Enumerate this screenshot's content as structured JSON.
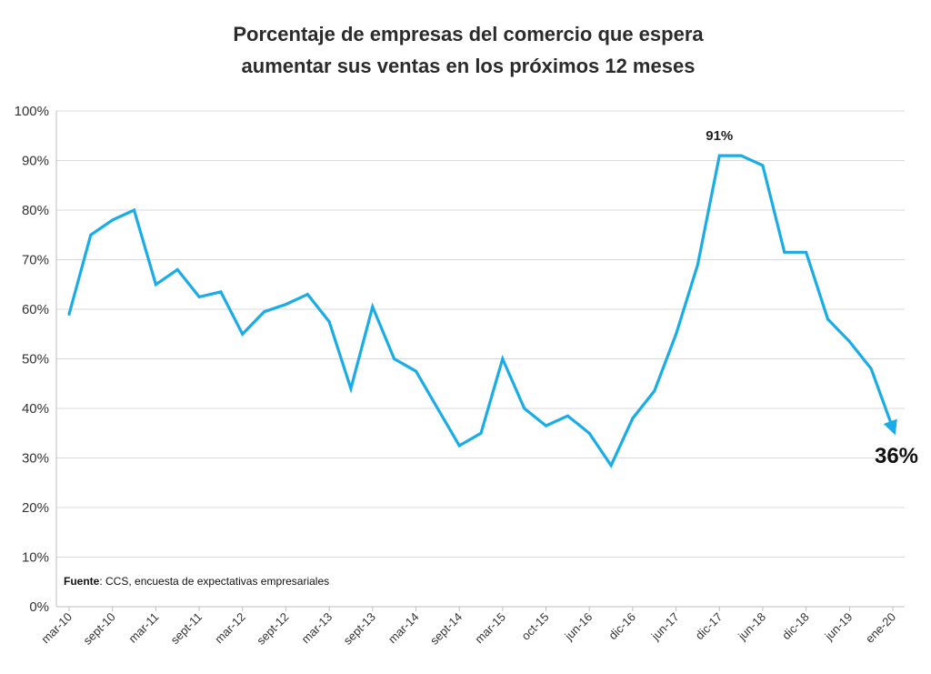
{
  "chart_data": {
    "type": "line",
    "title_lines": [
      "Porcentaje de empresas del comercio que espera",
      "aumentar sus ventas en los próximos 12 meses"
    ],
    "yticks": [
      "0%",
      "10%",
      "20%",
      "30%",
      "40%",
      "50%",
      "60%",
      "70%",
      "80%",
      "90%",
      "100%"
    ],
    "ylim": [
      0,
      100
    ],
    "x_tick_labels": [
      "mar-10",
      "sept-10",
      "mar-11",
      "sept-11",
      "mar-12",
      "sept-12",
      "mar-13",
      "sept-13",
      "mar-14",
      "sept-14",
      "mar-15",
      "oct-15",
      "jun-16",
      "dic-16",
      "jun-17",
      "dic-17",
      "jun-18",
      "dic-18",
      "jun-19",
      "ene-20"
    ],
    "series": [
      {
        "color": "#1AACE6",
        "values": [
          59,
          75,
          78,
          80,
          65,
          68,
          62.5,
          63.5,
          55,
          59.5,
          61,
          63,
          57.5,
          44,
          60.5,
          50,
          47.5,
          40,
          32.5,
          35,
          50,
          40,
          36.5,
          38.5,
          35,
          28.5,
          38,
          43.5,
          55,
          69,
          91,
          91,
          89,
          71.5,
          71.5,
          58,
          53.5,
          48,
          36
        ]
      }
    ],
    "annotations": {
      "peak_label": "91%",
      "last_label": "36%"
    },
    "source_bold": "Fuente",
    "source_text": ": CCS, encuesta de expectativas empresariales",
    "grid": true
  }
}
